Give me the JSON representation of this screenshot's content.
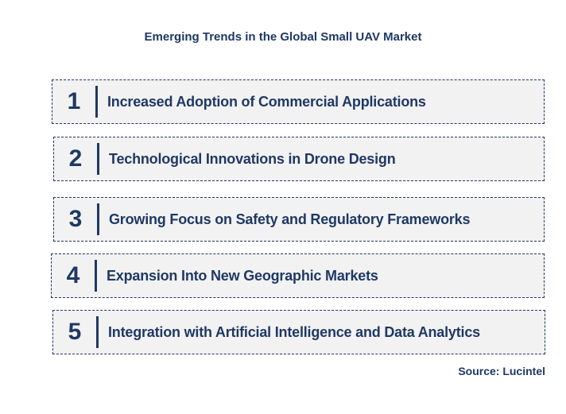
{
  "title": "Emerging Trends in the Global Small UAV Market",
  "trends": [
    {
      "number": "1",
      "label": "Increased Adoption of Commercial Applications"
    },
    {
      "number": "2",
      "label": "Technological Innovations in Drone Design"
    },
    {
      "number": "3",
      "label": "Growing Focus on Safety and Regulatory Frameworks"
    },
    {
      "number": "4",
      "label": "Expansion Into New Geographic Markets"
    },
    {
      "number": "5",
      "label": "Integration with Artificial Intelligence and Data Analytics"
    }
  ],
  "source": "Source: Lucintel",
  "colors": {
    "text": "#1f3864",
    "box_fill": "#f2f2f2",
    "box_border": "#1f3864"
  }
}
